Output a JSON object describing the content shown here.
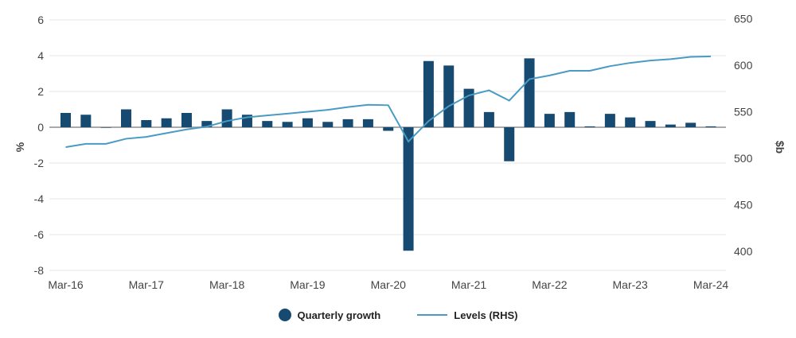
{
  "chart_data": {
    "type": "bar+line",
    "categories": [
      "Mar-16",
      "Jun-16",
      "Sep-16",
      "Dec-16",
      "Mar-17",
      "Jun-17",
      "Sep-17",
      "Dec-17",
      "Mar-18",
      "Jun-18",
      "Sep-18",
      "Dec-18",
      "Mar-19",
      "Jun-19",
      "Sep-19",
      "Dec-19",
      "Mar-20",
      "Jun-20",
      "Sep-20",
      "Dec-20",
      "Mar-21",
      "Jun-21",
      "Sep-21",
      "Dec-21",
      "Mar-22",
      "Jun-22",
      "Sep-22",
      "Dec-22",
      "Mar-23",
      "Jun-23",
      "Sep-23",
      "Dec-23",
      "Mar-24"
    ],
    "x_tick_labels": [
      "Mar-16",
      "Mar-17",
      "Mar-18",
      "Mar-19",
      "Mar-20",
      "Mar-21",
      "Mar-22",
      "Mar-23",
      "Mar-24"
    ],
    "series": [
      {
        "name": "Quarterly growth",
        "type": "bar",
        "axis": "left",
        "color": "#174a70",
        "values": [
          0.8,
          0.7,
          0.0,
          1.0,
          0.4,
          0.5,
          0.8,
          0.35,
          1.0,
          0.7,
          0.35,
          0.3,
          0.5,
          0.3,
          0.45,
          0.45,
          -0.2,
          -6.9,
          3.7,
          3.45,
          2.15,
          0.85,
          -1.9,
          3.85,
          0.75,
          0.85,
          0.05,
          0.75,
          0.55,
          0.35,
          0.15,
          0.25,
          0.05
        ]
      },
      {
        "name": "Levels (RHS)",
        "type": "line",
        "axis": "right",
        "color": "#4a9bc4",
        "values": [
          512,
          515.5,
          515.5,
          521,
          523,
          527,
          531,
          534,
          540,
          544,
          546,
          548,
          550,
          552,
          555,
          557.5,
          557,
          518,
          540,
          556,
          567.5,
          573,
          562,
          585,
          589,
          594,
          594,
          599,
          602.5,
          605,
          606.5,
          609,
          609.5
        ]
      }
    ],
    "ylabel": "%",
    "ylim": [
      -8,
      6
    ],
    "yticks": [
      "-8",
      "-6",
      "-4",
      "-2",
      "0",
      "2",
      "4",
      "6"
    ],
    "y2label": "$b",
    "y2lim": [
      380,
      650
    ],
    "y2ticks": [
      "400",
      "450",
      "500",
      "550",
      "600",
      "650"
    ],
    "grid": true,
    "legend": "bottom"
  }
}
